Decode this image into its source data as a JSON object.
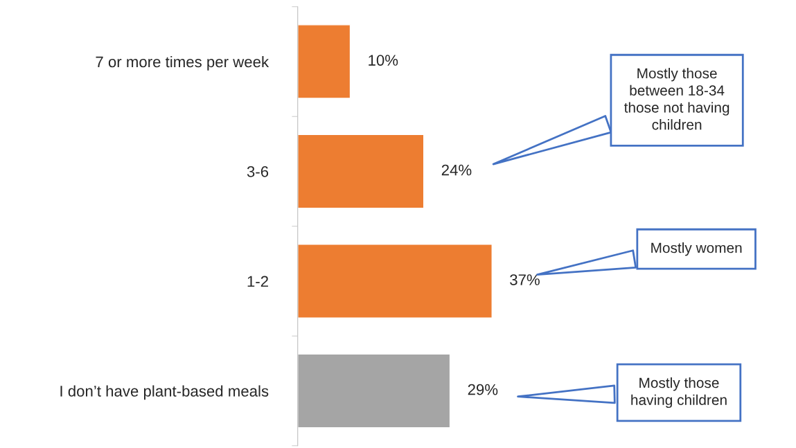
{
  "chart_data": {
    "type": "bar",
    "orientation": "horizontal",
    "categories": [
      "7 or more times per week",
      "3-6",
      "1-2",
      "I don’t have plant-based meals"
    ],
    "values": [
      10,
      24,
      37,
      29
    ],
    "colors": [
      "#ed7d31",
      "#ed7d31",
      "#ed7d31",
      "#a5a5a5"
    ],
    "value_labels": [
      "10%",
      "24%",
      "37%",
      "29%"
    ],
    "tick_labels": "y",
    "grid": false,
    "legend": false,
    "annotations": [
      "Mostly those\nbetween 18-34\nthose not having\nchildren",
      "Mostly women",
      "Mostly those\nhaving children"
    ]
  }
}
